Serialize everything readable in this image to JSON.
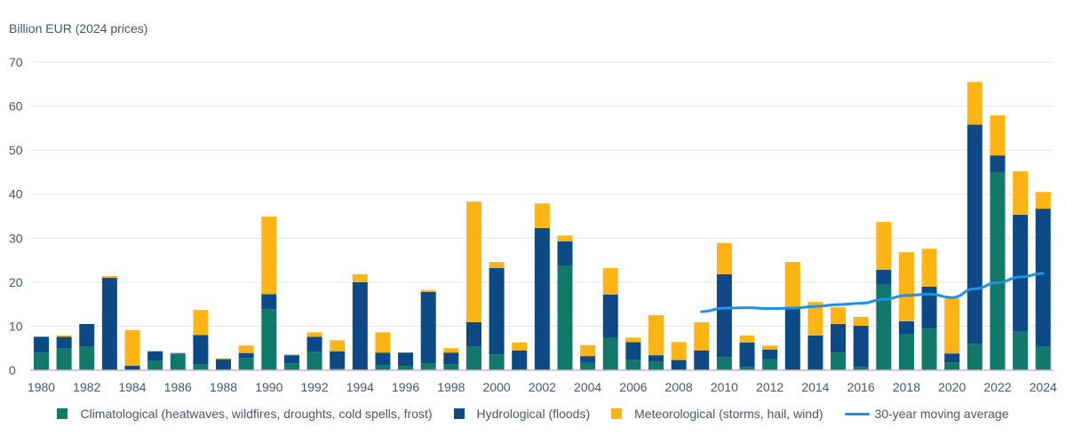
{
  "chart_data": {
    "type": "bar",
    "stacked": true,
    "title": "",
    "ylabel": "Billion EUR (2024 prices)",
    "xlabel": "",
    "ylim": [
      0,
      70
    ],
    "yticks": [
      0,
      10,
      20,
      30,
      40,
      50,
      60,
      70
    ],
    "grid": true,
    "legend_position": "bottom",
    "categories": [
      1980,
      1981,
      1982,
      1983,
      1984,
      1985,
      1986,
      1987,
      1988,
      1989,
      1990,
      1991,
      1992,
      1993,
      1994,
      1995,
      1996,
      1997,
      1998,
      1999,
      2000,
      2001,
      2002,
      2003,
      2004,
      2005,
      2006,
      2007,
      2008,
      2009,
      2010,
      2011,
      2012,
      2013,
      2014,
      2015,
      2016,
      2017,
      2018,
      2019,
      2020,
      2021,
      2022,
      2023,
      2024
    ],
    "xtick_labels": [
      "1980",
      "1982",
      "1984",
      "1986",
      "1988",
      "1990",
      "1992",
      "1994",
      "1996",
      "1998",
      "2000",
      "2002",
      "2004",
      "2006",
      "2008",
      "2010",
      "2012",
      "2014",
      "2016",
      "2018",
      "2020",
      "2022",
      "2024"
    ],
    "series": [
      {
        "name": "Climatological (heatwaves, wildfires, droughts, cold spells, frost)",
        "color": "#11796a",
        "values": [
          4.0,
          4.9,
          5.3,
          0.0,
          0.0,
          2.1,
          3.6,
          1.4,
          0.0,
          2.8,
          13.9,
          1.6,
          4.2,
          0.4,
          0.0,
          1.2,
          1.0,
          1.6,
          1.4,
          5.3,
          3.6,
          0.0,
          0.0,
          23.8,
          1.7,
          7.3,
          2.4,
          1.9,
          0.0,
          0.0,
          3.0,
          0.8,
          2.5,
          0.0,
          0.0,
          4.0,
          0.8,
          19.4,
          8.1,
          9.5,
          1.8,
          6.0,
          45.0,
          8.8,
          5.3
        ]
      },
      {
        "name": "Hydrological (floods)",
        "color": "#0d4a85",
        "values": [
          3.6,
          2.7,
          5.2,
          21.0,
          1.0,
          2.2,
          0.2,
          6.6,
          2.5,
          1.1,
          3.4,
          1.8,
          3.4,
          3.9,
          20.0,
          2.8,
          3.0,
          16.2,
          2.6,
          5.6,
          19.6,
          4.5,
          32.3,
          5.5,
          1.5,
          9.9,
          4.0,
          1.5,
          2.3,
          4.5,
          18.8,
          5.5,
          2.2,
          14.2,
          7.9,
          6.5,
          9.3,
          3.4,
          3.0,
          9.5,
          2.0,
          49.8,
          3.8,
          26.5,
          31.4
        ]
      },
      {
        "name": "Meteorological (storms, hail, wind)",
        "color": "#fdb515",
        "values": [
          0.0,
          0.3,
          0.0,
          0.4,
          8.1,
          0.0,
          0.2,
          5.7,
          0.2,
          1.7,
          17.6,
          0.2,
          1.0,
          2.5,
          1.8,
          4.6,
          0.0,
          0.4,
          1.0,
          27.4,
          1.4,
          1.8,
          5.6,
          1.3,
          2.5,
          6.0,
          1.0,
          9.1,
          4.1,
          6.4,
          7.1,
          1.6,
          0.9,
          10.4,
          7.6,
          3.8,
          2.0,
          10.9,
          15.7,
          8.6,
          12.5,
          9.7,
          9.1,
          9.9,
          3.8
        ]
      }
    ],
    "line_series": {
      "name": "30-year moving average",
      "color": "#1e90e8",
      "x": [
        2009,
        2010,
        2011,
        2012,
        2013,
        2014,
        2015,
        2016,
        2017,
        2018,
        2019,
        2020,
        2021,
        2022,
        2023,
        2024
      ],
      "values": [
        13.3,
        14.1,
        14.2,
        14.0,
        14.1,
        14.5,
        14.9,
        15.2,
        16.1,
        17.0,
        17.3,
        16.5,
        18.5,
        19.9,
        21.2,
        22.0
      ]
    },
    "totals": [
      7.6,
      7.9,
      10.5,
      21.4,
      9.1,
      4.3,
      4.0,
      13.7,
      2.7,
      5.6,
      34.9,
      3.6,
      8.6,
      6.8,
      21.8,
      8.6,
      4.0,
      18.2,
      5.0,
      38.3,
      24.6,
      6.3,
      37.9,
      30.6,
      5.7,
      23.2,
      7.4,
      12.5,
      6.4,
      10.9,
      28.9,
      7.9,
      5.6,
      24.6,
      15.5,
      14.3,
      12.1,
      33.7,
      26.8,
      27.6,
      16.3,
      65.5,
      57.9,
      45.2,
      40.5
    ]
  },
  "axis": {
    "y_title": "Billion EUR (2024 prices)"
  },
  "legend": [
    {
      "label": "Climatological (heatwaves, wildfires, droughts, cold spells, frost)",
      "color": "#11796a",
      "kind": "box"
    },
    {
      "label": "Hydrological (floods)",
      "color": "#0d4a85",
      "kind": "box"
    },
    {
      "label": "Meteorological (storms, hail, wind)",
      "color": "#fdb515",
      "kind": "box"
    },
    {
      "label": "30-year moving average",
      "color": "#1e90e8",
      "kind": "line"
    }
  ]
}
